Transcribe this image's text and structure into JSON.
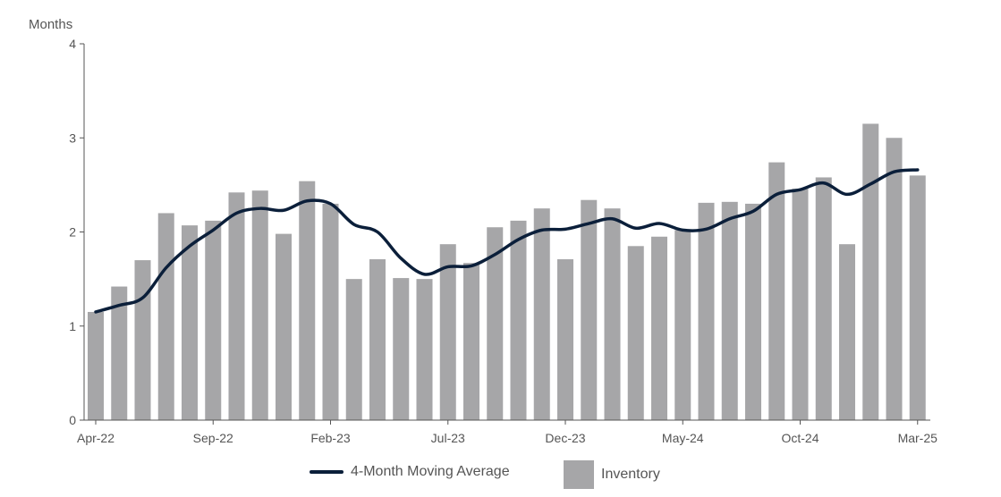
{
  "chart_data": {
    "type": "bar",
    "ylabel": "Months",
    "ylim": [
      0,
      4
    ],
    "yticks": [
      0,
      1,
      2,
      3,
      4
    ],
    "categories": [
      "Apr-22",
      "May-22",
      "Jun-22",
      "Jul-22",
      "Aug-22",
      "Sep-22",
      "Oct-22",
      "Nov-22",
      "Dec-22",
      "Jan-23",
      "Feb-23",
      "Mar-23",
      "Apr-23",
      "May-23",
      "Jun-23",
      "Jul-23",
      "Aug-23",
      "Sep-23",
      "Oct-23",
      "Nov-23",
      "Dec-23",
      "Jan-24",
      "Feb-24",
      "Mar-24",
      "Apr-24",
      "May-24",
      "Jun-24",
      "Jul-24",
      "Aug-24",
      "Sep-24",
      "Oct-24",
      "Nov-24",
      "Dec-24",
      "Jan-25",
      "Feb-25",
      "Mar-25"
    ],
    "xtick_labels": [
      "Apr-22",
      "Sep-22",
      "Feb-23",
      "Jul-23",
      "Dec-23",
      "May-24",
      "Oct-24",
      "Mar-25"
    ],
    "series": [
      {
        "name": "Inventory",
        "type": "bar",
        "color": "#a6a6a8",
        "values": [
          1.15,
          1.42,
          1.7,
          2.2,
          2.07,
          2.12,
          2.42,
          2.44,
          1.98,
          2.54,
          2.3,
          1.5,
          1.71,
          1.51,
          1.5,
          1.87,
          1.67,
          2.05,
          2.12,
          2.25,
          1.71,
          2.34,
          2.25,
          1.85,
          1.95,
          2.02,
          2.31,
          2.32,
          2.3,
          2.74,
          2.46,
          2.58,
          1.87,
          3.15,
          3.0,
          2.6
        ]
      },
      {
        "name": "4-Month Moving Average",
        "type": "line",
        "color": "#0b1f3a",
        "values": [
          1.15,
          1.22,
          1.3,
          1.62,
          1.85,
          2.02,
          2.2,
          2.25,
          2.23,
          2.33,
          2.3,
          2.08,
          2.0,
          1.72,
          1.55,
          1.63,
          1.64,
          1.76,
          1.92,
          2.02,
          2.03,
          2.09,
          2.14,
          2.04,
          2.09,
          2.02,
          2.03,
          2.14,
          2.22,
          2.4,
          2.45,
          2.52,
          2.4,
          2.51,
          2.64,
          2.66
        ]
      }
    ],
    "legend": {
      "position": "bottom"
    },
    "grid": false
  },
  "legend_labels": {
    "line": "4-Month Moving Average",
    "bar": "Inventory"
  }
}
